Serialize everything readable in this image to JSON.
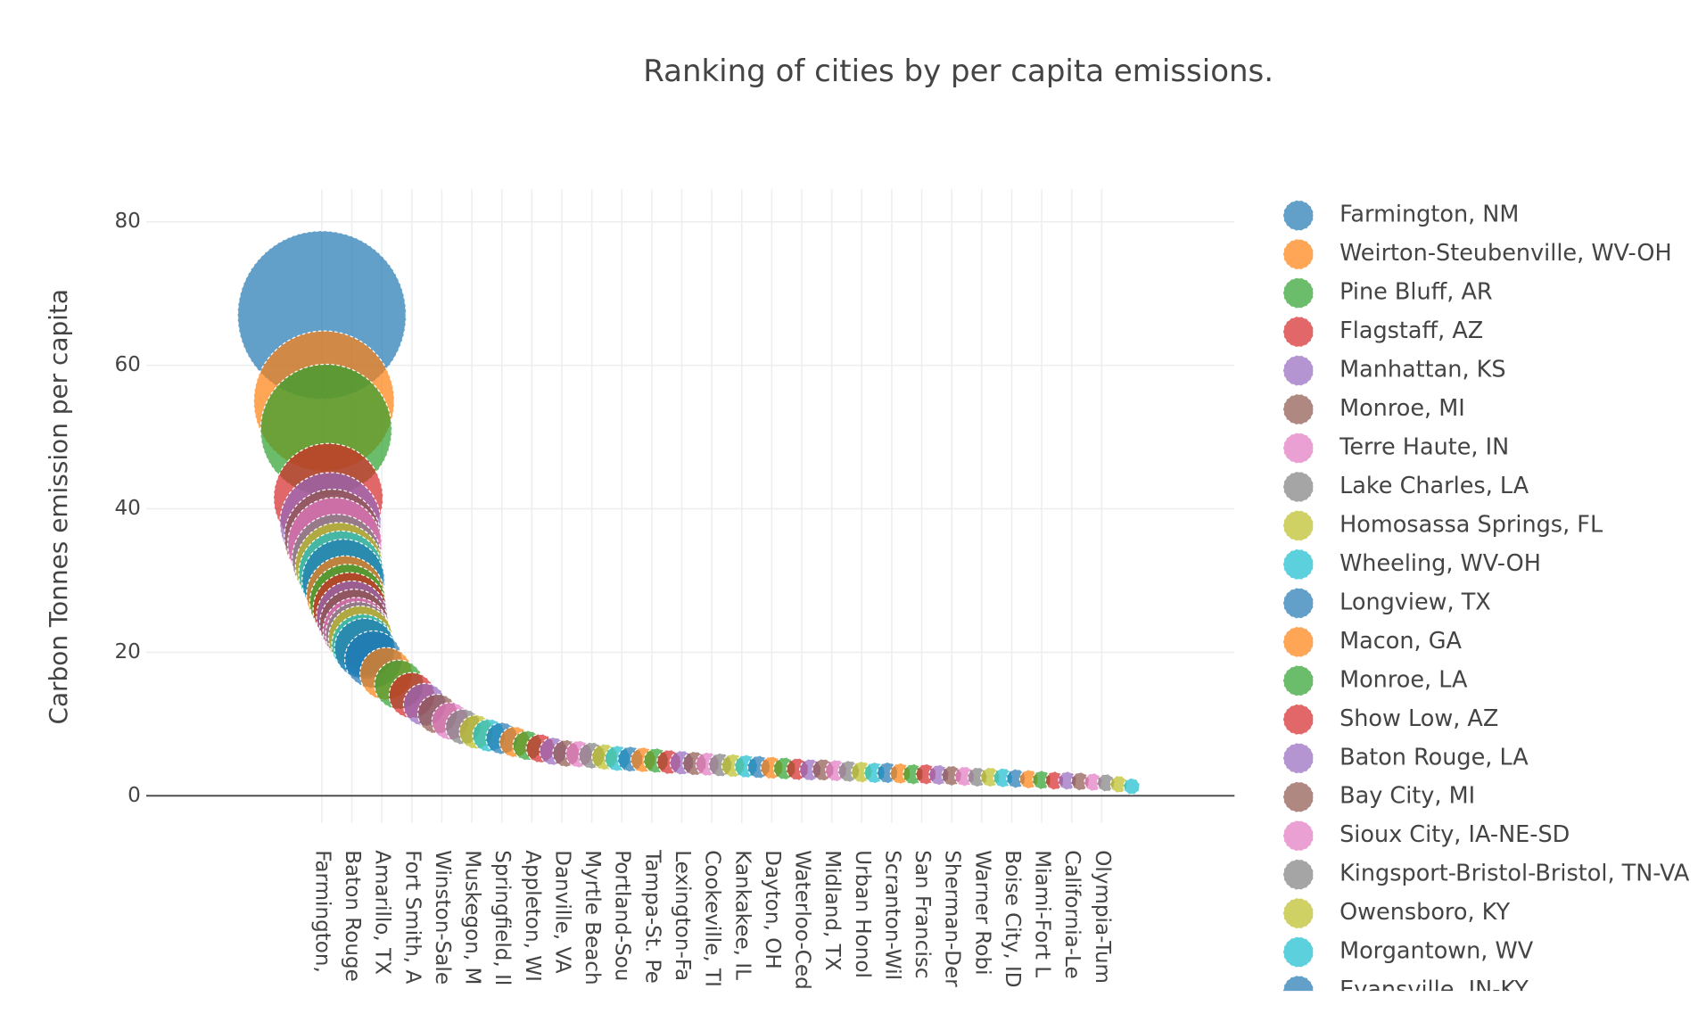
{
  "chart_data": {
    "type": "bubble",
    "title": "Ranking of cities by per capita emissions.",
    "y_label": "Carbon Tonnes emission per capita",
    "xlim": [
      -82,
      426
    ],
    "ylim": [
      -3.8,
      84.5
    ],
    "yticks": [
      0,
      20,
      40,
      60,
      80
    ],
    "xticks": [
      {
        "value": 0,
        "label": "Farmington,"
      },
      {
        "value": 14,
        "label": "Baton Rouge"
      },
      {
        "value": 28,
        "label": "Amarillo, TX"
      },
      {
        "value": 42,
        "label": "Fort Smith, A"
      },
      {
        "value": 56,
        "label": "Winston-Sale"
      },
      {
        "value": 70,
        "label": "Muskegon, M"
      },
      {
        "value": 84,
        "label": "Springfield, Il"
      },
      {
        "value": 98,
        "label": "Appleton, WI"
      },
      {
        "value": 112,
        "label": "Danville, VA"
      },
      {
        "value": 126,
        "label": "Myrtle Beach"
      },
      {
        "value": 140,
        "label": "Portland-Sou"
      },
      {
        "value": 154,
        "label": "Tampa-St. Pe"
      },
      {
        "value": 168,
        "label": "Lexington-Fa"
      },
      {
        "value": 182,
        "label": "Cookeville, TI"
      },
      {
        "value": 196,
        "label": "Kankakee, IL"
      },
      {
        "value": 210,
        "label": "Dayton, OH"
      },
      {
        "value": 224,
        "label": "Waterloo-Ced"
      },
      {
        "value": 238,
        "label": "Midland, TX"
      },
      {
        "value": 252,
        "label": "Urban Honol"
      },
      {
        "value": 266,
        "label": "Scranton-Wil"
      },
      {
        "value": 280,
        "label": "San Francisc"
      },
      {
        "value": 294,
        "label": "Sherman-Der"
      },
      {
        "value": 308,
        "label": "Warner Robi"
      },
      {
        "value": 322,
        "label": "Boise City, ID"
      },
      {
        "value": 336,
        "label": "Miami-Fort L"
      },
      {
        "value": 350,
        "label": "California-Le"
      },
      {
        "value": 364,
        "label": "Olympia-Tum"
      }
    ],
    "grid": true,
    "legend": "right",
    "palette": [
      "#1f77b4",
      "#ff7f0e",
      "#2ca02c",
      "#d62728",
      "#9467bd",
      "#8c564b",
      "#e377c2",
      "#7f7f7f",
      "#bcbd22",
      "#17becf"
    ],
    "series": [
      {
        "name": "Farmington, NM",
        "color": "#1f77b4",
        "x": 0,
        "value": 67
      },
      {
        "name": "Weirton-Steubenville, WV-OH",
        "color": "#ff7f0e",
        "x": 1,
        "value": 55
      },
      {
        "name": "Pine Bluff, AR",
        "color": "#2ca02c",
        "x": 2,
        "value": 51
      },
      {
        "name": "Flagstaff, AZ",
        "color": "#d62728",
        "x": 3,
        "value": 41.5
      },
      {
        "name": "Manhattan, KS",
        "color": "#9467bd",
        "x": 4,
        "value": 38
      },
      {
        "name": "Monroe, MI",
        "color": "#8c564b",
        "x": 5,
        "value": 36
      },
      {
        "name": "Terre Haute, IN",
        "color": "#e377c2",
        "x": 6,
        "value": 35
      },
      {
        "name": "Lake Charles, LA",
        "color": "#7f7f7f",
        "x": 7,
        "value": 33
      },
      {
        "name": "Homosassa Springs, FL",
        "color": "#bcbd22",
        "x": 8,
        "value": 32
      },
      {
        "name": "Wheeling, WV-OH",
        "color": "#17becf",
        "x": 9,
        "value": 31
      },
      {
        "name": "Longview, TX",
        "color": "#1f77b4",
        "x": 10,
        "value": 30
      },
      {
        "name": "Macon, GA",
        "color": "#ff7f0e",
        "x": 11,
        "value": 28
      },
      {
        "name": "Monroe, LA",
        "color": "#2ca02c",
        "x": 12,
        "value": 27
      },
      {
        "name": "Show Low, AZ",
        "color": "#d62728",
        "x": 13,
        "value": 26
      },
      {
        "name": "Baton Rouge, LA",
        "color": "#9467bd",
        "x": 14,
        "value": 25
      },
      {
        "name": "Bay City, MI",
        "color": "#8c564b",
        "x": 15,
        "value": 24
      },
      {
        "name": "Sioux City, IA-NE-SD",
        "color": "#e377c2",
        "x": 16,
        "value": 23
      },
      {
        "name": "Kingsport-Bristol-Bristol, TN-VA",
        "color": "#7f7f7f",
        "x": 17,
        "value": 22.5
      },
      {
        "name": "Owensboro, KY",
        "color": "#bcbd22",
        "x": 18,
        "value": 22
      },
      {
        "name": "Morgantown, WV",
        "color": "#17becf",
        "x": 19,
        "value": 21
      },
      {
        "name": "Evansville, IN-KY",
        "color": "#1f77b4",
        "x": 20,
        "value": 20.5
      }
    ],
    "others": {
      "x": [
        24,
        30,
        36,
        42,
        48,
        54,
        60,
        66,
        72,
        78,
        84,
        90,
        96,
        102,
        108,
        114,
        120,
        126,
        132,
        138,
        144,
        150,
        156,
        162,
        168,
        174,
        180,
        186,
        192,
        198,
        204,
        210,
        216,
        222,
        228,
        234,
        240,
        246,
        252,
        258,
        264,
        270,
        276,
        282,
        288,
        294,
        300,
        306,
        312,
        318,
        324,
        330,
        336,
        342,
        348,
        354,
        360,
        366,
        372,
        378
      ],
      "values": [
        19,
        17,
        15.5,
        14,
        12.7,
        11.4,
        10.4,
        9.6,
        8.9,
        8.4,
        8.0,
        7.5,
        7.0,
        6.6,
        6.2,
        5.9,
        5.8,
        5.6,
        5.4,
        5.2,
        5.1,
        5.0,
        4.9,
        4.7,
        4.6,
        4.5,
        4.4,
        4.3,
        4.2,
        4.1,
        4.0,
        3.9,
        3.8,
        3.7,
        3.6,
        3.6,
        3.5,
        3.4,
        3.3,
        3.2,
        3.2,
        3.1,
        3.0,
        3.0,
        2.9,
        2.8,
        2.7,
        2.6,
        2.6,
        2.5,
        2.4,
        2.3,
        2.2,
        2.1,
        2.1,
        2.0,
        1.9,
        1.8,
        1.6,
        1.3
      ]
    }
  }
}
